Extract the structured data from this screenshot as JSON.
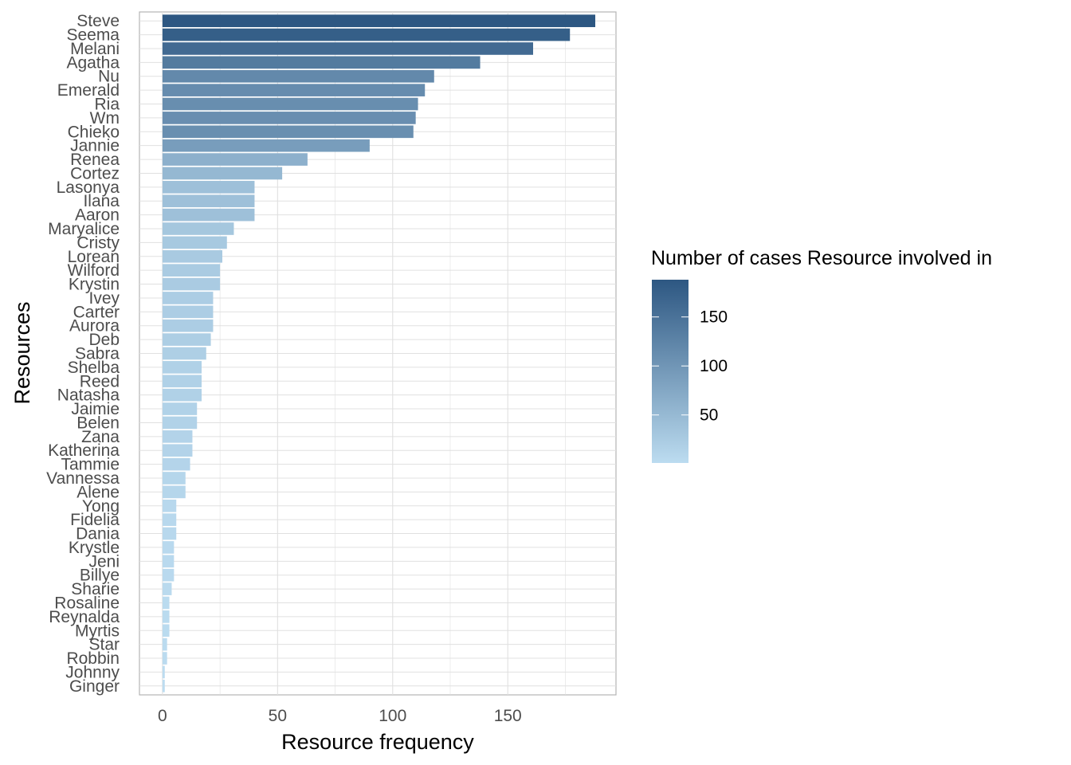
{
  "chart_data": {
    "type": "bar",
    "orientation": "horizontal",
    "xlabel": "Resource frequency",
    "ylabel": "Resources",
    "xlim": [
      -10,
      197
    ],
    "xticks": [
      0,
      50,
      100,
      150
    ],
    "grid": true,
    "legend_placement": "right",
    "legend": {
      "title": "Number of cases Resource involved in",
      "ticks": [
        50,
        100,
        150
      ],
      "range": [
        1,
        188
      ],
      "color_low": "#bcdcf0",
      "color_high": "#2d5782"
    },
    "categories": [
      "Steve",
      "Seema",
      "Melani",
      "Agatha",
      "Nu",
      "Emerald",
      "Ria",
      "Wm",
      "Chieko",
      "Jannie",
      "Renea",
      "Cortez",
      "Lasonya",
      "Ilana",
      "Aaron",
      "Maryalice",
      "Cristy",
      "Lorean",
      "Wilford",
      "Krystin",
      "Ivey",
      "Carter",
      "Aurora",
      "Deb",
      "Sabra",
      "Shelba",
      "Reed",
      "Natasha",
      "Jaimie",
      "Belen",
      "Zana",
      "Katherina",
      "Tammie",
      "Vannessa",
      "Alene",
      "Yong",
      "Fidelia",
      "Dania",
      "Krystle",
      "Jeni",
      "Billye",
      "Sharie",
      "Rosaline",
      "Reynalda",
      "Myrtis",
      "Star",
      "Robbin",
      "Johnny",
      "Ginger"
    ],
    "values": [
      188,
      177,
      161,
      138,
      118,
      114,
      111,
      110,
      109,
      90,
      63,
      52,
      40,
      40,
      40,
      31,
      28,
      26,
      25,
      25,
      22,
      22,
      22,
      21,
      19,
      17,
      17,
      17,
      15,
      15,
      13,
      13,
      12,
      10,
      10,
      6,
      6,
      6,
      5,
      5,
      5,
      4,
      3,
      3,
      3,
      2,
      2,
      1,
      1
    ]
  }
}
